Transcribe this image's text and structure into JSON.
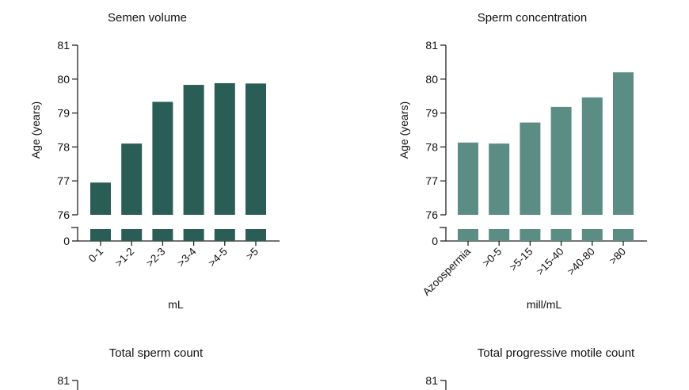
{
  "colors": {
    "panel1": "#2b5d57",
    "panel2": "#5b8d84",
    "axis": "#222222",
    "text": "#111111"
  },
  "chart_data": [
    {
      "type": "bar",
      "title": "Semen volume",
      "xlabel": "mL",
      "ylabel": "Age (years)",
      "categories": [
        "0-1",
        ">1-2",
        ">2-3",
        ">3-4",
        ">4-5",
        ">5"
      ],
      "values": [
        76.95,
        78.1,
        79.33,
        79.83,
        79.88,
        79.87
      ],
      "ylim": [
        76,
        81
      ],
      "yticks": [
        "76",
        "77",
        "78",
        "79",
        "80",
        "81"
      ],
      "axis_break": {
        "lower_tick": "0"
      },
      "grid": false,
      "legend": "none"
    },
    {
      "type": "bar",
      "title": "Sperm concentration",
      "xlabel": "mill/mL",
      "ylabel": "Age (years)",
      "categories": [
        "Azoospermia",
        ">0-5",
        ">5-15",
        ">15-40",
        ">40-80",
        ">80"
      ],
      "values": [
        78.13,
        78.1,
        78.72,
        79.18,
        79.46,
        80.2
      ],
      "ylim": [
        76,
        81
      ],
      "yticks": [
        "76",
        "77",
        "78",
        "79",
        "80",
        "81"
      ],
      "axis_break": {
        "lower_tick": "0"
      },
      "grid": false,
      "legend": "none"
    },
    {
      "type": "bar",
      "title": "Total sperm count",
      "yticks": [
        "81"
      ]
    },
    {
      "type": "bar",
      "title": "Total progressive motile count",
      "yticks": [
        "81"
      ]
    }
  ]
}
